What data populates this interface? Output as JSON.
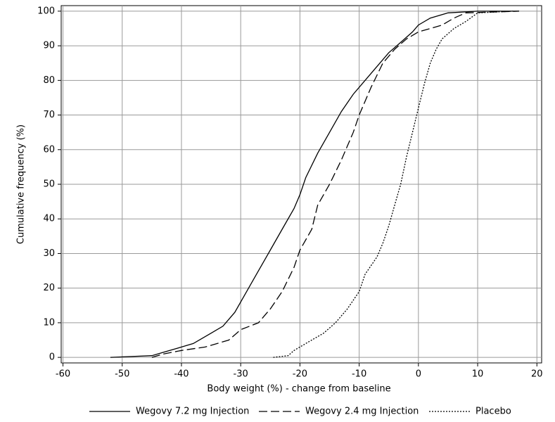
{
  "chart_data": {
    "type": "line",
    "xlabel": "Body weight (%) - change from baseline",
    "ylabel": "Cumulative frequency (%)",
    "xlim": [
      -60.3,
      20.8
    ],
    "ylim": [
      -1.6,
      101.6
    ],
    "xticks": [
      -60,
      -50,
      -40,
      -30,
      -20,
      -10,
      0,
      10,
      20
    ],
    "yticks": [
      0,
      10,
      20,
      30,
      40,
      50,
      60,
      70,
      80,
      90,
      100
    ],
    "grid": true,
    "legend": "bottom",
    "series": [
      {
        "name": "Wegovy 7.2 mg Injection",
        "color": "#000000",
        "line_style": "solid",
        "x": [
          -52,
          -45,
          -43,
          -40,
          -38,
          -35,
          -33,
          -31,
          -29,
          -27,
          -25,
          -23,
          -21,
          -20,
          -19,
          -17,
          -15,
          -13,
          -11,
          -9,
          -7,
          -5,
          -3,
          -1,
          0,
          2,
          5,
          10,
          17
        ],
        "values": [
          0,
          0.5,
          1.5,
          3,
          4,
          7,
          9,
          13,
          19,
          25,
          31,
          37,
          43,
          47,
          52,
          59,
          65,
          71,
          76,
          80,
          84,
          88,
          91,
          94,
          96,
          98,
          99.5,
          100,
          100
        ]
      },
      {
        "name": "Wegovy 2.4 mg Injection",
        "color": "#000000",
        "line_style": "dashed",
        "x": [
          -45,
          -43,
          -40,
          -36,
          -32,
          -30,
          -27,
          -25,
          -23,
          -21,
          -20,
          -18,
          -17,
          -15,
          -13,
          -11,
          -10,
          -8,
          -6,
          -4,
          -2,
          0,
          2,
          4,
          6,
          8,
          17
        ],
        "values": [
          0,
          1,
          2,
          3,
          5,
          8,
          10,
          14,
          19,
          26,
          31,
          37,
          44,
          50,
          57,
          65,
          70,
          78,
          85,
          89,
          92,
          94,
          95,
          96,
          98,
          99.5,
          100
        ]
      },
      {
        "name": "Placebo",
        "color": "#000000",
        "line_style": "dotted",
        "x": [
          -24.5,
          -22,
          -21,
          -19,
          -16,
          -14,
          -12,
          -10,
          -9,
          -7,
          -6,
          -5,
          -4,
          -3,
          -2,
          -1,
          0,
          1,
          2,
          3,
          4,
          6,
          8,
          10,
          16
        ],
        "values": [
          0,
          0.5,
          2,
          4,
          7,
          10,
          14,
          19,
          24,
          29,
          33,
          38,
          44,
          50,
          58,
          65,
          72,
          79,
          85,
          89,
          92,
          95,
          97,
          99.5,
          100
        ]
      }
    ]
  }
}
